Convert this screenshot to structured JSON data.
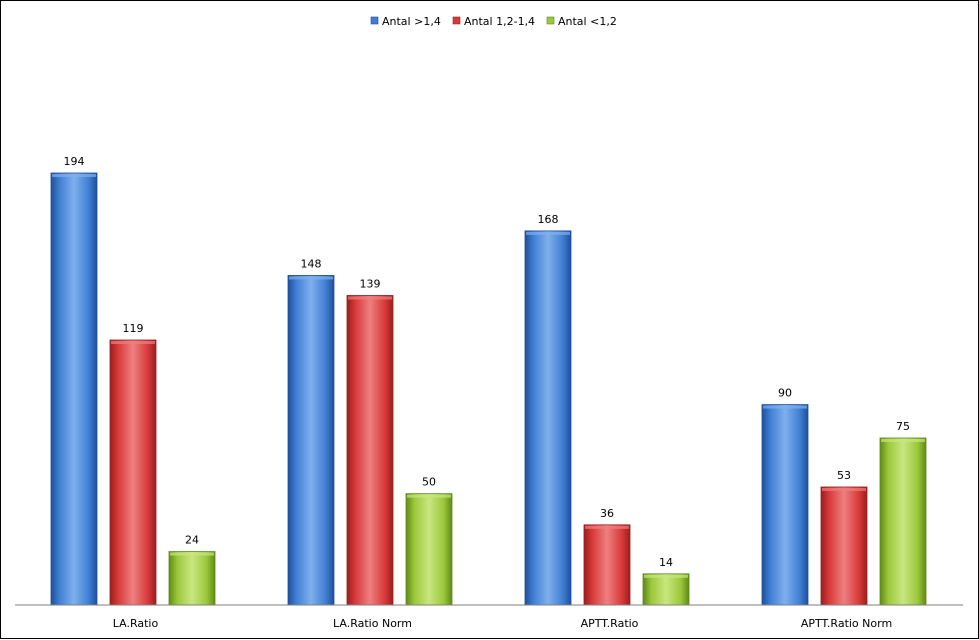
{
  "chart_data": {
    "type": "bar",
    "title": "",
    "xlabel": "",
    "ylabel": "",
    "categories": [
      "LA.Ratio",
      "LA.Ratio Norm",
      "APTT.Ratio",
      "APTT.Ratio Norm"
    ],
    "series": [
      {
        "name": "Antal >1,4",
        "values": [
          194,
          148,
          168,
          90
        ],
        "color": "#3f7fd4",
        "dark": "#1e4f9a",
        "light": "#7fb0ec"
      },
      {
        "name": "Antal 1,2-1,4",
        "values": [
          119,
          139,
          36,
          53
        ],
        "color": "#d93a3a",
        "dark": "#9a1e1e",
        "light": "#ee7f7f"
      },
      {
        "name": "Antal <1,2",
        "values": [
          24,
          50,
          14,
          75
        ],
        "color": "#9cc83a",
        "dark": "#5e8a18",
        "light": "#c8e680"
      }
    ],
    "ylim": [
      0,
      194
    ],
    "grid": false,
    "legend_position": "top-center",
    "data_labels": true
  }
}
